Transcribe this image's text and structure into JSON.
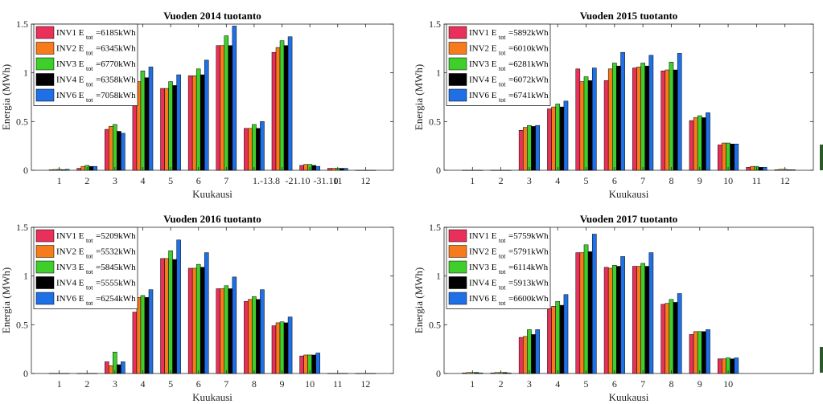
{
  "colors": {
    "inv1": "#e8305a",
    "inv2": "#f57b1c",
    "inv3": "#3fcf2a",
    "inv4": "#000000",
    "inv6": "#1f6fe6"
  },
  "chart_data": [
    {
      "type": "bar",
      "title": "Vuoden 2014 tuotanto",
      "xlabel": "Kuukausi",
      "ylabel": "Energia (MWh)",
      "ylim": [
        0,
        1.5
      ],
      "yticks": [
        "0",
        "0.5",
        "1",
        "1.5"
      ],
      "legend_position": "top-left",
      "categories": [
        "1",
        "2",
        "3",
        "4",
        "5",
        "6",
        "7",
        "1.-13.8",
        "-21.10",
        "-31.10",
        "11",
        "12"
      ],
      "series": [
        {
          "name": "INV1",
          "sub": "tot",
          "total": "=6185kWh",
          "color_key": "inv1",
          "values": [
            0.005,
            0.02,
            0.42,
            0.9,
            0.84,
            0.97,
            1.28,
            0.43,
            1.21,
            0.05,
            0.02,
            0
          ]
        },
        {
          "name": "INV2",
          "sub": "tot",
          "total": "=6345kWh",
          "color_key": "inv2",
          "values": [
            0.008,
            0.04,
            0.45,
            0.91,
            0.84,
            0.97,
            1.28,
            0.43,
            1.26,
            0.06,
            0.02,
            0
          ]
        },
        {
          "name": "INV3",
          "sub": "tot",
          "total": "=6770kWh",
          "color_key": "inv3",
          "values": [
            0.01,
            0.05,
            0.47,
            1.02,
            0.91,
            1.04,
            1.38,
            0.47,
            1.33,
            0.06,
            0.02,
            0
          ]
        },
        {
          "name": "INV4",
          "sub": "tot",
          "total": "=6358kWh",
          "color_key": "inv4",
          "values": [
            0.006,
            0.04,
            0.4,
            0.95,
            0.87,
            0.98,
            1.28,
            0.43,
            1.28,
            0.05,
            0.02,
            0
          ]
        },
        {
          "name": "INV6",
          "sub": "tot",
          "total": "=7058kWh",
          "color_key": "inv6",
          "values": [
            0.01,
            0.04,
            0.38,
            1.06,
            0.98,
            1.13,
            1.48,
            0.5,
            1.37,
            0.04,
            0.02,
            0
          ]
        }
      ]
    },
    {
      "type": "bar",
      "title": "Vuoden 2015 tuotanto",
      "xlabel": "Kuukausi",
      "ylabel": "Energia (MWh)",
      "ylim": [
        0,
        1.5
      ],
      "yticks": [
        "0",
        "0.5",
        "1",
        "1.5"
      ],
      "legend_position": "top-left",
      "categories": [
        "1",
        "2",
        "3",
        "4",
        "5",
        "6",
        "7",
        "8",
        "9",
        "10",
        "11",
        "12"
      ],
      "series": [
        {
          "name": "INV1",
          "sub": "tot",
          "total": "=5892kWh",
          "color_key": "inv1",
          "values": [
            0,
            0,
            0.41,
            0.63,
            1.04,
            0.92,
            1.05,
            1.02,
            0.51,
            0.26,
            0.03,
            0.005
          ]
        },
        {
          "name": "INV2",
          "sub": "tot",
          "total": "=6010kWh",
          "color_key": "inv2",
          "values": [
            0,
            0,
            0.44,
            0.65,
            0.91,
            1.04,
            1.06,
            1.03,
            0.54,
            0.28,
            0.04,
            0.01
          ]
        },
        {
          "name": "INV3",
          "sub": "tot",
          "total": "=6281kWh",
          "color_key": "inv3",
          "values": [
            0,
            0,
            0.46,
            0.68,
            0.96,
            1.1,
            1.1,
            1.11,
            0.56,
            0.28,
            0.04,
            0.01
          ]
        },
        {
          "name": "INV4",
          "sub": "tot",
          "total": "=6072kWh",
          "color_key": "inv4",
          "values": [
            0,
            0,
            0.45,
            0.65,
            0.92,
            1.07,
            1.07,
            1.03,
            0.54,
            0.27,
            0.03,
            0.005
          ]
        },
        {
          "name": "INV6",
          "sub": "tot",
          "total": "=6741kWh",
          "color_key": "inv6",
          "values": [
            0,
            0,
            0.46,
            0.71,
            1.05,
            1.21,
            1.18,
            1.2,
            0.59,
            0.27,
            0.03,
            0.005
          ]
        }
      ]
    },
    {
      "type": "bar",
      "title": "Vuoden 2016 tuotanto",
      "xlabel": "Kuukausi",
      "ylabel": "Energia (MWh)",
      "ylim": [
        0,
        1.5
      ],
      "yticks": [
        "0",
        "0.5",
        "1",
        "1.5"
      ],
      "legend_position": "top-left",
      "categories": [
        "1",
        "2",
        "3",
        "4",
        "5",
        "6",
        "7",
        "8",
        "9",
        "10",
        "11",
        "12"
      ],
      "series": [
        {
          "name": "INV1",
          "sub": "tot",
          "total": "=5209kWh",
          "color_key": "inv1",
          "values": [
            0,
            0,
            0.12,
            0.63,
            1.18,
            1.08,
            0.87,
            0.74,
            0.49,
            0.18,
            0,
            0
          ]
        },
        {
          "name": "INV2",
          "sub": "tot",
          "total": "=5532kWh",
          "color_key": "inv2",
          "values": [
            0,
            0,
            0.08,
            0.78,
            1.18,
            1.08,
            0.87,
            0.76,
            0.52,
            0.19,
            0,
            0
          ]
        },
        {
          "name": "INV3",
          "sub": "tot",
          "total": "=5845kWh",
          "color_key": "inv3",
          "values": [
            0,
            0,
            0.22,
            0.8,
            1.26,
            1.12,
            0.9,
            0.79,
            0.53,
            0.19,
            0,
            0
          ]
        },
        {
          "name": "INV4",
          "sub": "tot",
          "total": "=5555kWh",
          "color_key": "inv4",
          "values": [
            0,
            0,
            0.09,
            0.78,
            1.17,
            1.09,
            0.87,
            0.76,
            0.52,
            0.19,
            0,
            0
          ]
        },
        {
          "name": "INV6",
          "sub": "tot",
          "total": "=6254kWh",
          "color_key": "inv6",
          "values": [
            0,
            0,
            0.12,
            0.86,
            1.37,
            1.24,
            0.99,
            0.86,
            0.58,
            0.21,
            0,
            0
          ]
        }
      ]
    },
    {
      "type": "bar",
      "title": "Vuoden 2017 tuotanto",
      "xlabel": "Kuukausi",
      "ylabel": "Energia (MWh)",
      "ylim": [
        0,
        1.5
      ],
      "yticks": [
        "0",
        "0.5",
        "1",
        "1.5"
      ],
      "legend_position": "top-left",
      "categories": [
        "1",
        "2",
        "3",
        "4",
        "5",
        "6",
        "7",
        "8",
        "9",
        "10"
      ],
      "series": [
        {
          "name": "INV1",
          "sub": "tot",
          "total": "=5759kWh",
          "color_key": "inv1",
          "values": [
            0.005,
            0.005,
            0.37,
            0.67,
            1.24,
            1.09,
            1.1,
            0.71,
            0.4,
            0.15
          ]
        },
        {
          "name": "INV2",
          "sub": "tot",
          "total": "=5791kWh",
          "color_key": "inv2",
          "values": [
            0.01,
            0.01,
            0.38,
            0.69,
            1.24,
            1.08,
            1.1,
            0.72,
            0.43,
            0.15
          ]
        },
        {
          "name": "INV3",
          "sub": "tot",
          "total": "=6114kWh",
          "color_key": "inv3",
          "values": [
            0.01,
            0.01,
            0.45,
            0.74,
            1.32,
            1.11,
            1.13,
            0.76,
            0.43,
            0.16
          ]
        },
        {
          "name": "INV4",
          "sub": "tot",
          "total": "=5913kWh",
          "color_key": "inv4",
          "values": [
            0.01,
            0.01,
            0.4,
            0.7,
            1.25,
            1.1,
            1.1,
            0.73,
            0.43,
            0.15
          ]
        },
        {
          "name": "INV6",
          "sub": "tot",
          "total": "=6600kWh",
          "color_key": "inv6",
          "values": [
            0.005,
            0.005,
            0.45,
            0.81,
            1.43,
            1.2,
            1.24,
            0.82,
            0.45,
            0.16
          ]
        }
      ]
    }
  ]
}
